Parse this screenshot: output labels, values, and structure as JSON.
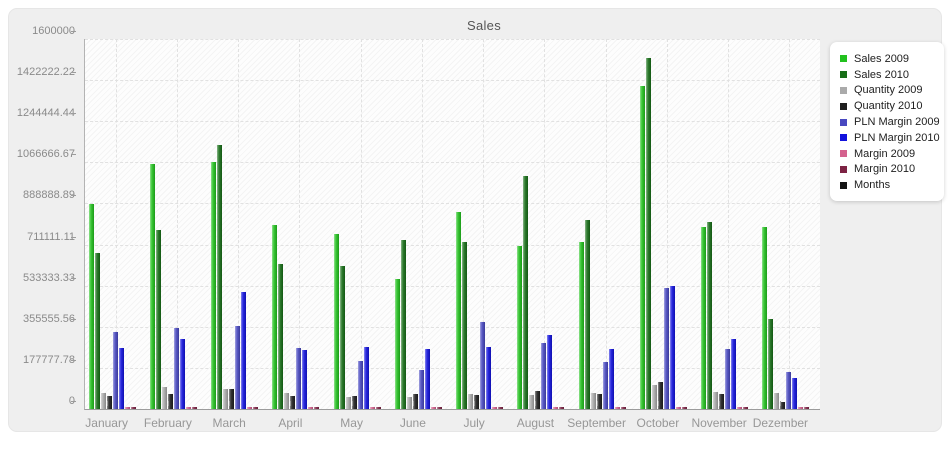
{
  "chart": {
    "title": "Sales"
  },
  "chart_data": {
    "type": "bar",
    "title": "Sales",
    "xlabel": "",
    "ylabel": "",
    "ylim": [
      0,
      1600000
    ],
    "grid": true,
    "legend_position": "right",
    "plot_background": "#fdfdfd",
    "panel_background": "#efefef",
    "y_ticks": [
      {
        "value": 0,
        "label": "0"
      },
      {
        "value": 177777.78,
        "label": "177777.78"
      },
      {
        "value": 355555.56,
        "label": "355555.56"
      },
      {
        "value": 533333.33,
        "label": "533333.33"
      },
      {
        "value": 711111.11,
        "label": "711111.11"
      },
      {
        "value": 888888.89,
        "label": "888888.89"
      },
      {
        "value": 1066666.67,
        "label": "1066666.67"
      },
      {
        "value": 1244444.44,
        "label": "1244444.44"
      },
      {
        "value": 1422222.22,
        "label": "1422222.22"
      },
      {
        "value": 1600000,
        "label": "1600000"
      }
    ],
    "categories": [
      "January",
      "February",
      "March",
      "April",
      "May",
      "June",
      "July",
      "August",
      "September",
      "October",
      "November",
      "Dezember"
    ],
    "series": [
      {
        "name": "Sales 2009",
        "color": "#22c11e",
        "values": [
          885000,
          1060000,
          1066000,
          795000,
          757000,
          562000,
          851000,
          706000,
          720000,
          1396000,
          786000,
          786000
        ]
      },
      {
        "name": "Sales 2010",
        "color": "#176e17",
        "values": [
          676000,
          772000,
          1142000,
          627000,
          617000,
          732000,
          723000,
          1009000,
          818000,
          1517000,
          810000,
          391000
        ]
      },
      {
        "name": "Quantity 2009",
        "color": "#aaaaaa",
        "values": [
          70000,
          93000,
          88000,
          68000,
          52000,
          52000,
          67000,
          62000,
          71000,
          104000,
          74000,
          69000
        ]
      },
      {
        "name": "Quantity 2010",
        "color": "#1f1f1f",
        "values": [
          57000,
          64000,
          86000,
          57000,
          57000,
          64000,
          60000,
          79000,
          67000,
          117000,
          64000,
          29000
        ]
      },
      {
        "name": "PLN Margin 2009",
        "color": "#4848c0",
        "values": [
          332000,
          352000,
          358000,
          262000,
          208000,
          170000,
          377000,
          284000,
          205000,
          522000,
          259000,
          161000
        ]
      },
      {
        "name": "PLN Margin 2010",
        "color": "#1212dd",
        "values": [
          262000,
          301000,
          507000,
          255000,
          270000,
          258000,
          266000,
          318000,
          261000,
          533000,
          302000,
          136000
        ]
      },
      {
        "name": "Margin 2009",
        "color": "#d4628e",
        "values": [
          8000,
          8000,
          8000,
          8000,
          8000,
          8000,
          8000,
          8000,
          8000,
          8000,
          8000,
          8000
        ]
      },
      {
        "name": "Margin 2010",
        "color": "#7d2344",
        "values": [
          8000,
          8000,
          8000,
          8000,
          8000,
          8000,
          8000,
          8000,
          8000,
          8000,
          8000,
          8000
        ]
      },
      {
        "name": "Months",
        "color": "#141414",
        "values": [
          0,
          0,
          0,
          0,
          0,
          0,
          0,
          0,
          0,
          0,
          0,
          0
        ]
      }
    ]
  }
}
